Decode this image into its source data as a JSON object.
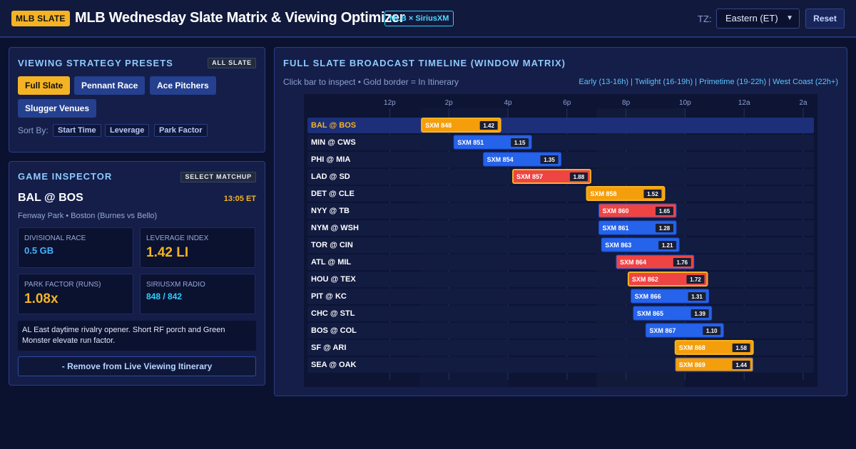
{
  "header": {
    "badge": "MLB SLATE",
    "title": "MLB Wednesday Slate Matrix & Viewing Optimizer",
    "partner_badge": "MLB × SiriusXM",
    "tz_label": "TZ:",
    "tz_value": "Eastern (ET)",
    "reset_label": "Reset"
  },
  "presets_panel": {
    "title": "VIEWING STRATEGY PRESETS",
    "badge": "ALL SLATE",
    "presets": [
      "Full Slate",
      "Pennant Race",
      "Ace Pitchers",
      "Slugger Venues"
    ],
    "active_preset": "Full Slate",
    "sort_label": "Sort By:",
    "sort_options": [
      "Start Time",
      "Leverage",
      "Park Factor"
    ]
  },
  "inspector": {
    "title": "GAME INSPECTOR",
    "badge": "SELECT MATCHUP",
    "matchup": "BAL @ BOS",
    "time": "13:05 ET",
    "venue": "Fenway Park • Boston (Burnes vs Bello)",
    "stats": [
      {
        "label": "DIVISIONAL RACE",
        "value": "0.5 GB",
        "color": "#3fb4ff"
      },
      {
        "label": "LEVERAGE INDEX",
        "value": "1.42 LI",
        "color": "#f4b324"
      },
      {
        "label": "PARK FACTOR (RUNS)",
        "value": "1.08x",
        "color": "#f4b324"
      },
      {
        "label": "SIRIUSXM RADIO",
        "value": "848 / 842",
        "color": "#2ed0ff"
      }
    ],
    "description": "AL East daytime rivalry opener. Short RF porch and Green Monster elevate run factor.",
    "remove_label": "- Remove from Live Viewing Itinerary"
  },
  "timeline": {
    "title": "FULL SLATE BROADCAST TIMELINE (WINDOW MATRIX)",
    "hint": "Click bar to inspect • Gold border = In Itinerary",
    "legend": "Early (13-16h) | Twilight (16-19h) | Primetime (19-22h) | West Coast (22h+)",
    "hour_start": 10,
    "hour_end": 27,
    "ticks": [
      {
        "hour": 12,
        "label": "12p"
      },
      {
        "hour": 14,
        "label": "2p"
      },
      {
        "hour": 16,
        "label": "4p"
      },
      {
        "hour": 18,
        "label": "6p"
      },
      {
        "hour": 20,
        "label": "8p"
      },
      {
        "hour": 22,
        "label": "10p"
      },
      {
        "hour": 24,
        "label": "12a"
      },
      {
        "hour": 26,
        "label": "2a"
      }
    ],
    "colors": {
      "early": "#f59e0b",
      "twilight": "#2563eb",
      "primetime": "#ef4444",
      "itinerary": "#f4b324"
    },
    "games": [
      {
        "matchup": "BAL @ BOS",
        "start": 13.08,
        "end": 15.75,
        "channel": "SXM 848",
        "li": "1.42",
        "tier": "early",
        "itinerary": true,
        "selected": true
      },
      {
        "matchup": "MIN @ CWS",
        "start": 14.17,
        "end": 16.8,
        "channel": "SXM 851",
        "li": "1.15",
        "tier": "twilight",
        "itinerary": false
      },
      {
        "matchup": "PHI @ MIA",
        "start": 15.17,
        "end": 17.8,
        "channel": "SXM 854",
        "li": "1.35",
        "tier": "twilight",
        "itinerary": false
      },
      {
        "matchup": "LAD @ SD",
        "start": 16.17,
        "end": 18.8,
        "channel": "SXM 857",
        "li": "1.88",
        "tier": "primetime",
        "itinerary": true
      },
      {
        "matchup": "DET @ CLE",
        "start": 18.67,
        "end": 21.3,
        "channel": "SXM 858",
        "li": "1.52",
        "tier": "early",
        "itinerary": true
      },
      {
        "matchup": "NYY @ TB",
        "start": 19.08,
        "end": 21.7,
        "channel": "SXM 860",
        "li": "1.65",
        "tier": "primetime",
        "itinerary": false
      },
      {
        "matchup": "NYM @ WSH",
        "start": 19.08,
        "end": 21.7,
        "channel": "SXM 861",
        "li": "1.28",
        "tier": "twilight",
        "itinerary": false
      },
      {
        "matchup": "TOR @ CIN",
        "start": 19.17,
        "end": 21.8,
        "channel": "SXM 863",
        "li": "1.21",
        "tier": "twilight",
        "itinerary": false
      },
      {
        "matchup": "ATL @ MIL",
        "start": 19.67,
        "end": 22.3,
        "channel": "SXM 864",
        "li": "1.76",
        "tier": "primetime",
        "itinerary": false
      },
      {
        "matchup": "HOU @ TEX",
        "start": 20.08,
        "end": 22.75,
        "channel": "SXM 862",
        "li": "1.72",
        "tier": "primetime",
        "itinerary": true
      },
      {
        "matchup": "PIT @ KC",
        "start": 20.17,
        "end": 22.8,
        "channel": "SXM 866",
        "li": "1.31",
        "tier": "twilight",
        "itinerary": false
      },
      {
        "matchup": "CHC @ STL",
        "start": 20.25,
        "end": 22.9,
        "channel": "SXM 865",
        "li": "1.39",
        "tier": "twilight",
        "itinerary": false
      },
      {
        "matchup": "BOS @ COL",
        "start": 20.67,
        "end": 23.3,
        "channel": "SXM 867",
        "li": "1.10",
        "tier": "twilight",
        "itinerary": false
      },
      {
        "matchup": "SF @ ARI",
        "start": 21.67,
        "end": 24.3,
        "channel": "SXM 868",
        "li": "1.58",
        "tier": "early",
        "itinerary": true
      },
      {
        "matchup": "SEA @ OAK",
        "start": 21.67,
        "end": 24.3,
        "channel": "SXM 869",
        "li": "1.44",
        "tier": "early",
        "itinerary": false
      }
    ]
  }
}
